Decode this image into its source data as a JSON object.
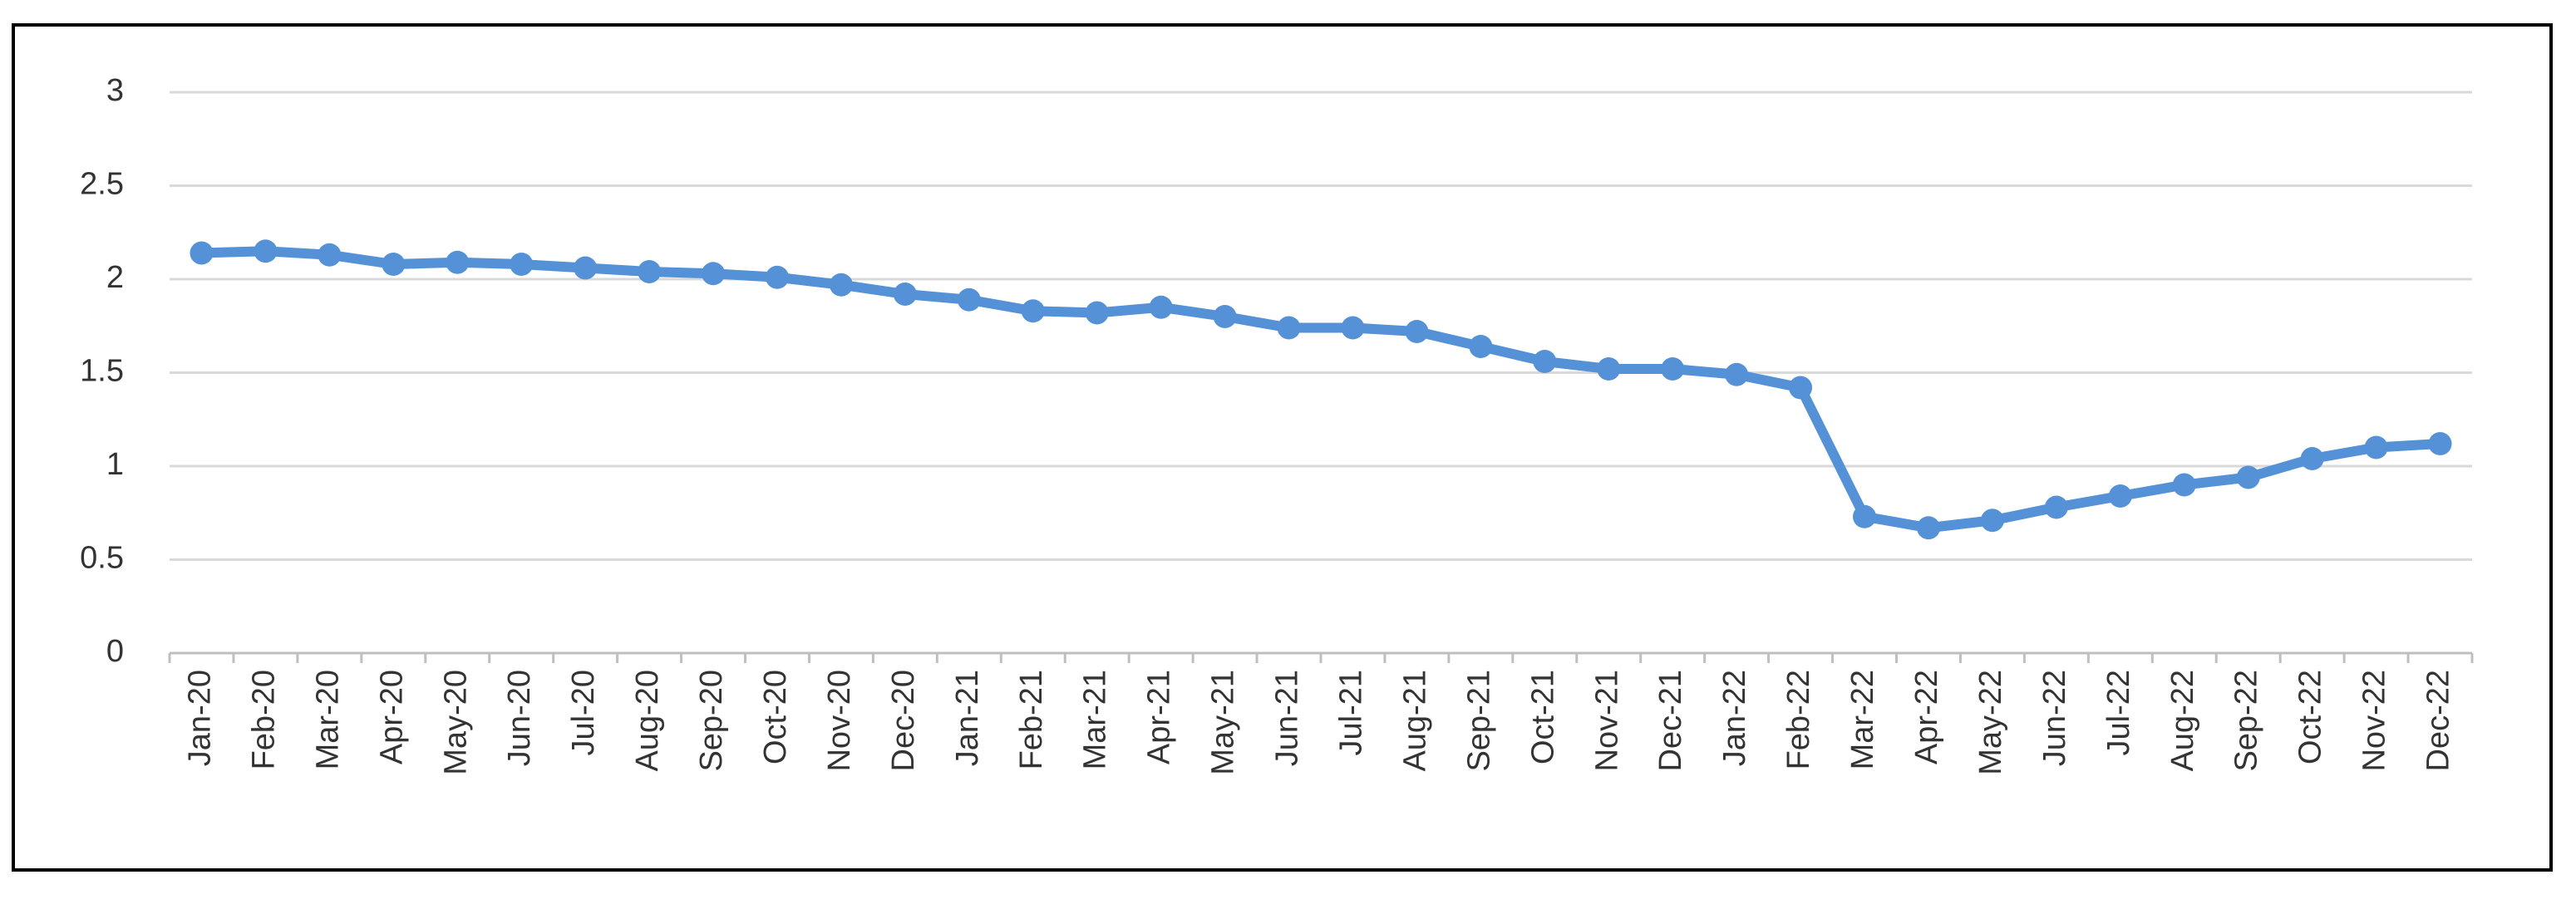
{
  "chart_data": {
    "type": "line",
    "categories": [
      "Jan-20",
      "Feb-20",
      "Mar-20",
      "Apr-20",
      "May-20",
      "Jun-20",
      "Jul-20",
      "Aug-20",
      "Sep-20",
      "Oct-20",
      "Nov-20",
      "Dec-20",
      "Jan-21",
      "Feb-21",
      "Mar-21",
      "Apr-21",
      "May-21",
      "Jun-21",
      "Jul-21",
      "Aug-21",
      "Sep-21",
      "Oct-21",
      "Nov-21",
      "Dec-21",
      "Jan-22",
      "Feb-22",
      "Mar-22",
      "Apr-22",
      "May-22",
      "Jun-22",
      "Jul-22",
      "Aug-22",
      "Sep-22",
      "Oct-22",
      "Nov-22",
      "Dec-22"
    ],
    "values": [
      2.14,
      2.15,
      2.13,
      2.08,
      2.09,
      2.08,
      2.06,
      2.04,
      2.03,
      2.01,
      1.97,
      1.92,
      1.89,
      1.83,
      1.82,
      1.85,
      1.8,
      1.74,
      1.74,
      1.72,
      1.64,
      1.56,
      1.52,
      1.52,
      1.49,
      1.42,
      0.73,
      0.67,
      0.71,
      0.78,
      0.84,
      0.9,
      0.94,
      1.04,
      1.1,
      1.12
    ],
    "color": "#5591d6",
    "ylim": [
      0,
      3
    ],
    "yticks": [
      0,
      {
        "value": 0.5,
        "label": "0.5"
      },
      1,
      {
        "value": 1.5,
        "label": "1.5"
      },
      2,
      {
        "value": 2.5,
        "label": "2.5"
      },
      3
    ],
    "grid": true
  }
}
